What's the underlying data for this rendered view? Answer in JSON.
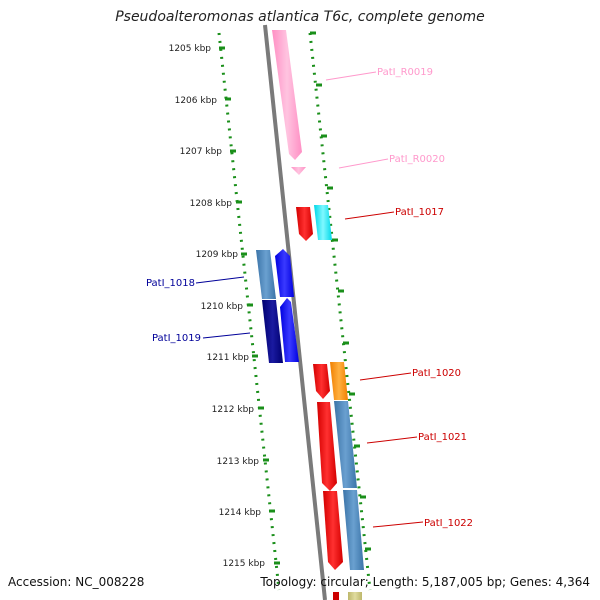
{
  "title": "Pseudoalteromonas atlantica T6c, complete genome",
  "footer": {
    "accession": "Accession: NC_008228",
    "stats": "Topology: circular; Length: 5,187,005 bp; Genes: 4,364"
  },
  "scale_ticks": [
    "1205 kbp",
    "1206 kbp",
    "1207 kbp",
    "1208 kbp",
    "1209 kbp",
    "1210 kbp",
    "1211 kbp",
    "1212 kbp",
    "1213 kbp",
    "1214 kbp",
    "1215 kbp"
  ],
  "features": [
    {
      "name": "PatI_R0019",
      "strand": "forward",
      "type": "rRNA",
      "color": "#ff99cc"
    },
    {
      "name": "PatI_R0020",
      "strand": "forward",
      "type": "rRNA",
      "color": "#ff99cc"
    },
    {
      "name": "PatI_1017",
      "strand": "forward",
      "type": "CDS",
      "color": "#ff0000"
    },
    {
      "name": "",
      "strand": "forward",
      "type": "CDS",
      "color": "#00e5ee"
    },
    {
      "name": "PatI_1018",
      "strand": "reverse",
      "type": "CDS",
      "color": "#4682b4"
    },
    {
      "name": "PatI_1019",
      "strand": "reverse",
      "type": "CDS",
      "color": "#000080"
    },
    {
      "name": "",
      "strand": "reverse",
      "type": "CDS",
      "color": "#0000ff"
    },
    {
      "name": "PatI_1020",
      "strand": "forward",
      "type": "CDS",
      "color": "#ff0000"
    },
    {
      "name": "",
      "strand": "forward",
      "type": "CDS",
      "color": "#ff8c00"
    },
    {
      "name": "PatI_1021",
      "strand": "forward",
      "type": "CDS",
      "color": "#4682b4"
    },
    {
      "name": "PatI_1022",
      "strand": "forward",
      "type": "CDS",
      "color": "#ff0000"
    }
  ],
  "colors": {
    "backbone": "#808080",
    "dotted_track": "#1a8f1a",
    "label_forward": "#cc0000",
    "label_reverse": "#000099",
    "label_rrna": "#ff99cc"
  }
}
